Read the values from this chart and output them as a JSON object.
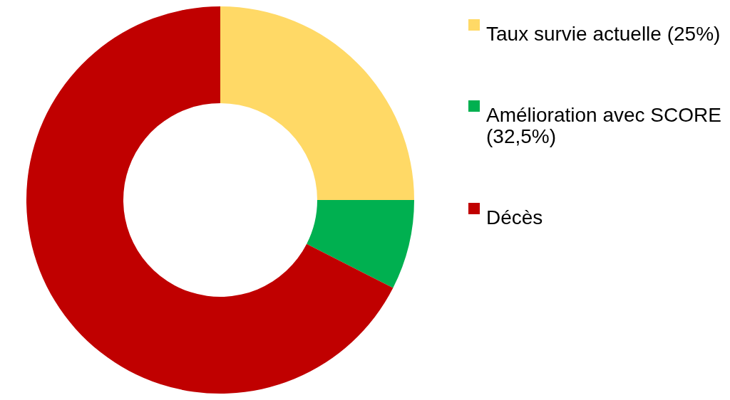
{
  "chart_data": {
    "type": "donut",
    "categories": [
      "Taux survie actuelle (25%)",
      "Amélioration avec SCORE (32,5%)",
      "Décès"
    ],
    "values": [
      25,
      7.5,
      67.5
    ],
    "colors": [
      "#ffd966",
      "#00b050",
      "#c00000"
    ],
    "legend": "right"
  }
}
